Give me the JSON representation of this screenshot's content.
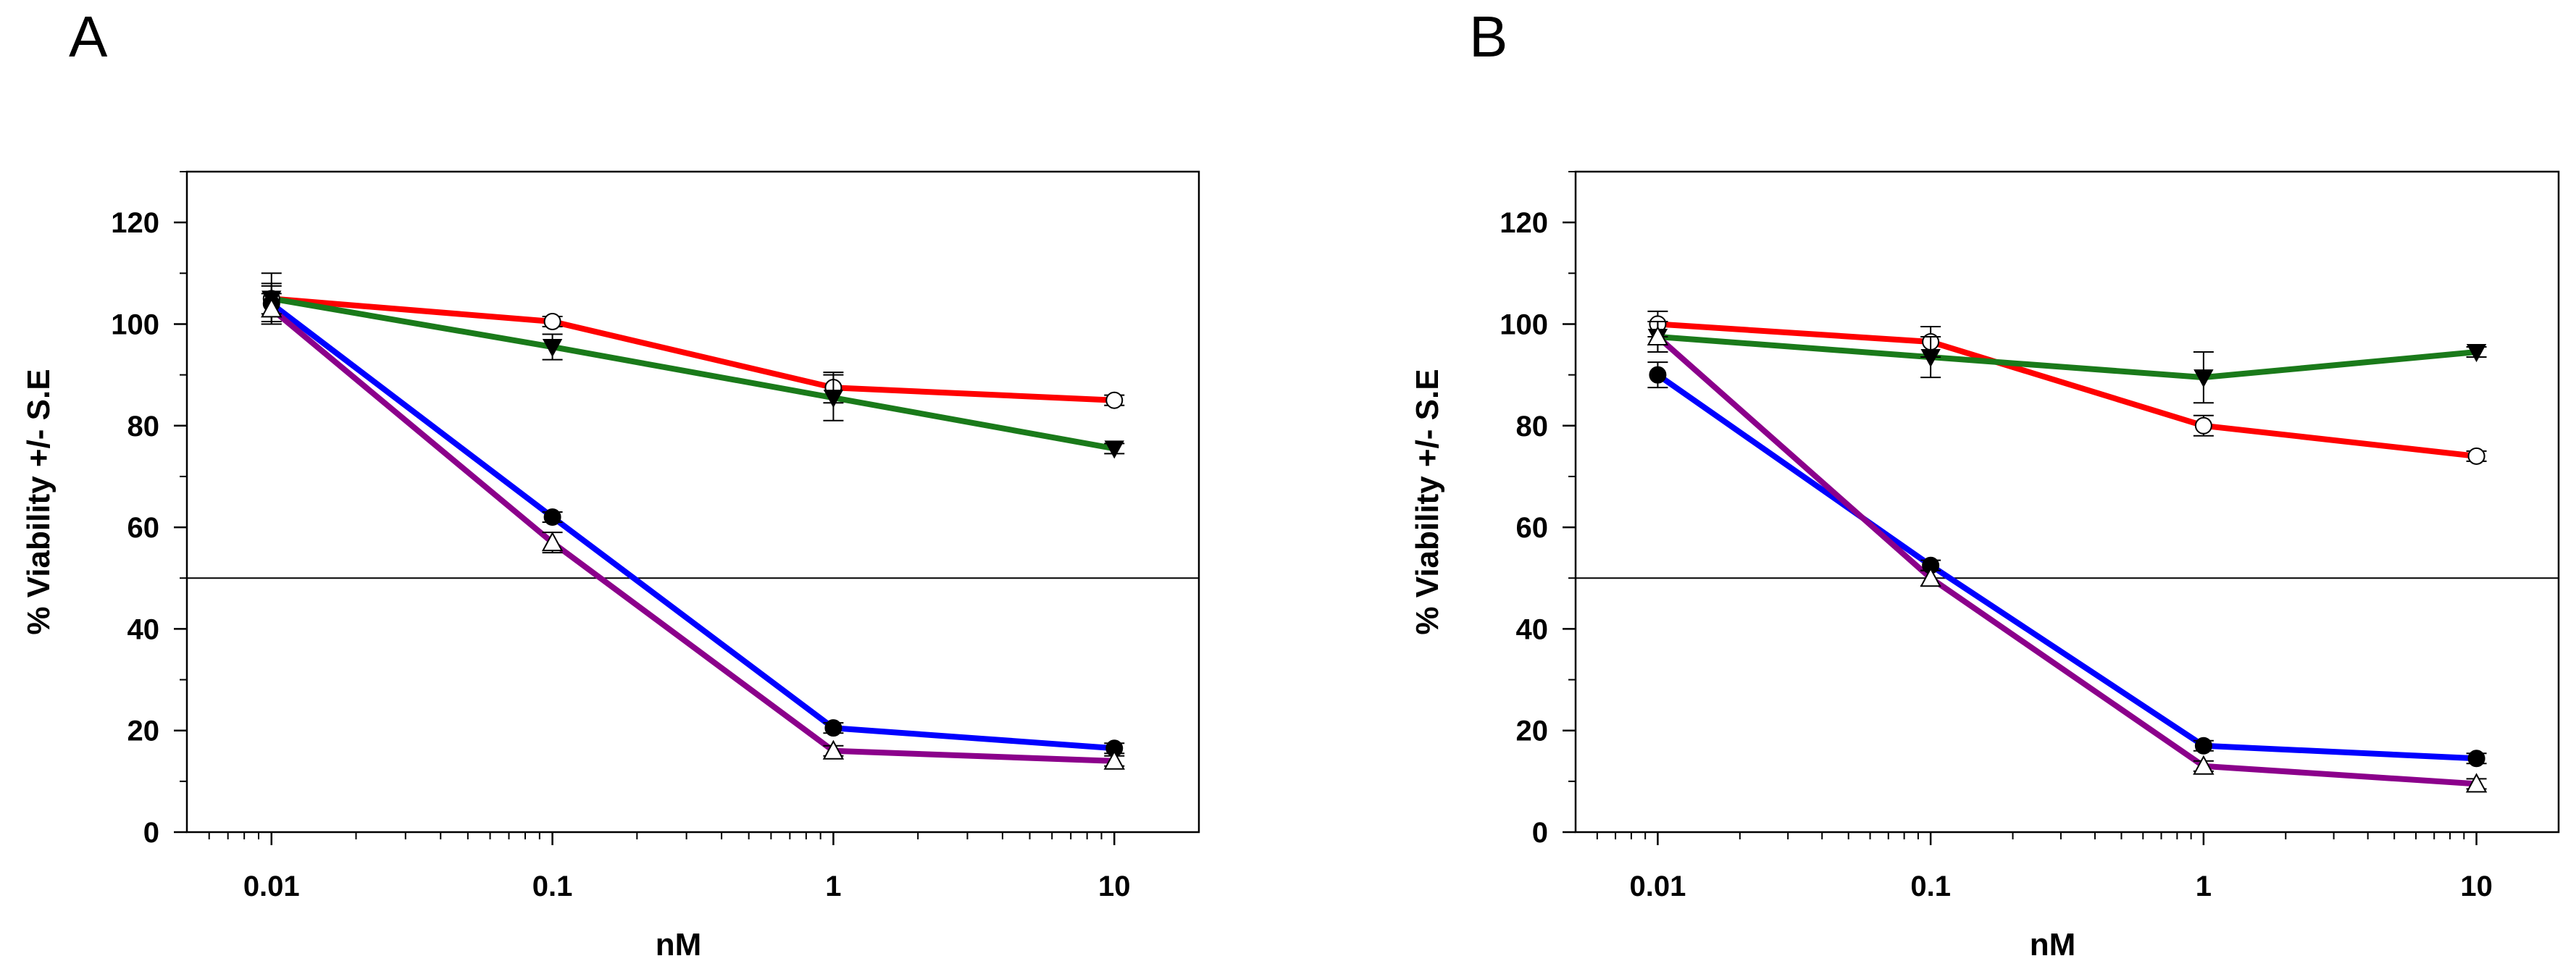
{
  "figure": {
    "panels": [
      "A",
      "B"
    ]
  },
  "chart_data": [
    {
      "panel": "A",
      "type": "line",
      "xscale": "log",
      "xlabel": "nM",
      "ylabel": "% Viability +/-  S.E",
      "xlim": [
        0.005,
        20
      ],
      "ylim": [
        0,
        130
      ],
      "yticks": [
        0,
        20,
        40,
        60,
        80,
        100,
        120
      ],
      "xticks": [
        0.01,
        0.1,
        1,
        10
      ],
      "xtick_labels": [
        "0.01",
        "0.1",
        "1",
        "10"
      ],
      "ytick_labels": [
        "0",
        "20",
        "40",
        "60",
        "80",
        "100",
        "120"
      ],
      "reference_line": 50,
      "x": [
        0.01,
        0.1,
        1,
        10
      ],
      "series": [
        {
          "name": "red",
          "color": "#ff0000",
          "marker": "open-circle",
          "values": [
            105,
            100.5,
            87.5,
            85
          ],
          "errors": [
            5,
            1,
            3,
            1
          ]
        },
        {
          "name": "green",
          "color": "#1a7a1a",
          "marker": "filled-triangle-down",
          "values": [
            105,
            95.5,
            85.5,
            75.5
          ],
          "errors": [
            3,
            2.5,
            4.5,
            1
          ]
        },
        {
          "name": "blue",
          "color": "#0000ff",
          "marker": "filled-circle",
          "values": [
            104,
            62,
            20.5,
            16.5
          ],
          "errors": [
            3.5,
            1,
            1,
            1
          ]
        },
        {
          "name": "purple",
          "color": "#8b008b",
          "marker": "open-triangle-up",
          "values": [
            103,
            57,
            16,
            14
          ],
          "errors": [
            3,
            2,
            1,
            1
          ]
        }
      ]
    },
    {
      "panel": "B",
      "type": "line",
      "xscale": "log",
      "xlabel": "nM",
      "ylabel": "% Viability +/-  S.E",
      "xlim": [
        0.005,
        20
      ],
      "ylim": [
        0,
        130
      ],
      "yticks": [
        0,
        20,
        40,
        60,
        80,
        100,
        120
      ],
      "xticks": [
        0.01,
        0.1,
        1,
        10
      ],
      "xtick_labels": [
        "0.01",
        "0.1",
        "1",
        "10"
      ],
      "ytick_labels": [
        "0",
        "20",
        "40",
        "60",
        "80",
        "100",
        "120"
      ],
      "reference_line": 50,
      "x": [
        0.01,
        0.1,
        1,
        10
      ],
      "series": [
        {
          "name": "red",
          "color": "#ff0000",
          "marker": "open-circle",
          "values": [
            100,
            96.5,
            80,
            74
          ],
          "errors": [
            2.5,
            3,
            2,
            1
          ]
        },
        {
          "name": "green",
          "color": "#1a7a1a",
          "marker": "filled-triangle-down",
          "values": [
            97.5,
            93.5,
            89.5,
            94.5
          ],
          "errors": [
            3,
            4,
            5,
            1
          ]
        },
        {
          "name": "blue",
          "color": "#0000ff",
          "marker": "filled-circle",
          "values": [
            90,
            52.5,
            17,
            14.5
          ],
          "errors": [
            2.5,
            1,
            1,
            1
          ]
        },
        {
          "name": "purple",
          "color": "#8b008b",
          "marker": "open-triangle-up",
          "values": [
            97.5,
            50,
            13,
            9.5
          ],
          "errors": [
            3,
            1.5,
            1,
            1
          ]
        }
      ]
    }
  ]
}
